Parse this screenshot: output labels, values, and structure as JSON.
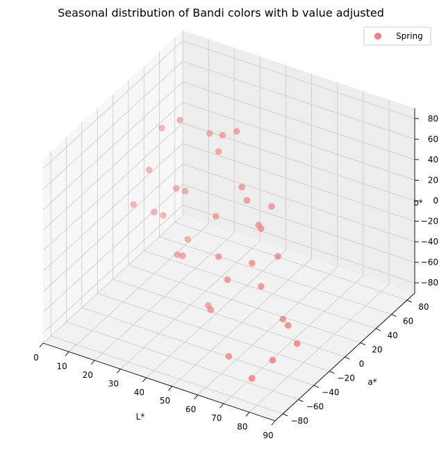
{
  "chart_data": {
    "type": "scatter",
    "title": "Seasonal distribution of Bandi colors with b value adjusted",
    "xlabel": "L*",
    "ylabel": "a*",
    "zlabel": "b*",
    "xlim": [
      0,
      90
    ],
    "ylim": [
      -90,
      90
    ],
    "zlim": [
      -90,
      90
    ],
    "xticks": [
      "0",
      "10",
      "20",
      "30",
      "40",
      "50",
      "60",
      "70",
      "80",
      "90"
    ],
    "yticks": [
      "−80",
      "−60",
      "−40",
      "−20",
      "0",
      "20",
      "40",
      "60",
      "80"
    ],
    "zticks": [
      "−80",
      "−60",
      "−40",
      "−20",
      "0",
      "20",
      "40",
      "60",
      "80"
    ],
    "grid": true,
    "legend_position": "top-right",
    "series": [
      {
        "name": "Spring",
        "color": "#f08080",
        "points": [
          {
            "x": 45,
            "y": 10,
            "z": 85
          },
          {
            "x": 38,
            "y": 15,
            "z": 72
          },
          {
            "x": 20,
            "y": 20,
            "z": 68
          },
          {
            "x": 30,
            "y": 25,
            "z": 60
          },
          {
            "x": 35,
            "y": 20,
            "z": 50
          },
          {
            "x": 10,
            "y": 30,
            "z": 45
          },
          {
            "x": 50,
            "y": 0,
            "z": 42
          },
          {
            "x": 55,
            "y": -10,
            "z": 40
          },
          {
            "x": 60,
            "y": 5,
            "z": 28
          },
          {
            "x": 62,
            "y": -15,
            "z": 22
          },
          {
            "x": 58,
            "y": -5,
            "z": 15
          },
          {
            "x": 70,
            "y": -20,
            "z": 5
          },
          {
            "x": 25,
            "y": 10,
            "z": 10
          },
          {
            "x": 20,
            "y": 15,
            "z": 5
          },
          {
            "x": 40,
            "y": 0,
            "z": 5
          },
          {
            "x": 5,
            "y": 30,
            "z": 0
          },
          {
            "x": 50,
            "y": -30,
            "z": -5
          },
          {
            "x": 60,
            "y": -20,
            "z": -10
          },
          {
            "x": 65,
            "y": -25,
            "z": -25
          },
          {
            "x": 55,
            "y": -35,
            "z": -20
          },
          {
            "x": 80,
            "y": -40,
            "z": -40
          },
          {
            "x": 75,
            "y": -30,
            "z": -45
          },
          {
            "x": 85,
            "y": -45,
            "z": -50
          },
          {
            "x": 80,
            "y": -60,
            "z": -60
          },
          {
            "x": 30,
            "y": -10,
            "z": -35
          },
          {
            "x": 25,
            "y": 0,
            "z": -45
          },
          {
            "x": 50,
            "y": -40,
            "z": -50
          },
          {
            "x": 5,
            "y": 10,
            "z": -20
          },
          {
            "x": 10,
            "y": 20,
            "z": -30
          },
          {
            "x": 12,
            "y": 25,
            "z": -35
          },
          {
            "x": 20,
            "y": 30,
            "z": -55
          },
          {
            "x": 40,
            "y": -10,
            "z": -75
          },
          {
            "x": 60,
            "y": -50,
            "z": -80
          },
          {
            "x": 75,
            "y": -70,
            "z": -75
          }
        ]
      }
    ]
  },
  "legend": {
    "label": "Spring"
  }
}
